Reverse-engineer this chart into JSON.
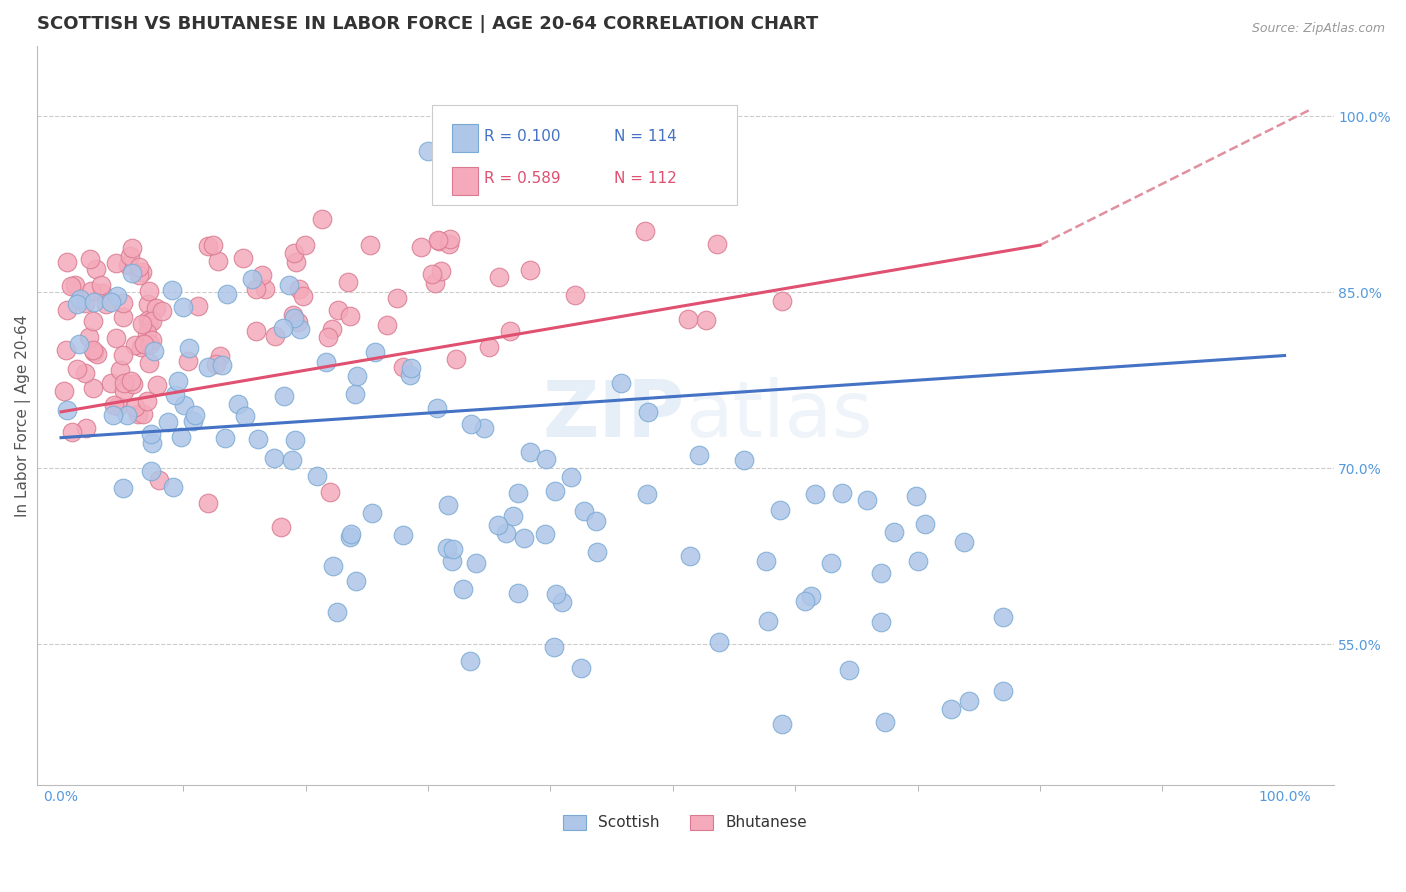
{
  "title": "SCOTTISH VS BHUTANESE IN LABOR FORCE | AGE 20-64 CORRELATION CHART",
  "source": "Source: ZipAtlas.com",
  "ylabel": "In Labor Force | Age 20-64",
  "y_ticks": [
    0.55,
    0.7,
    0.85,
    1.0
  ],
  "y_tick_labels": [
    "55.0%",
    "70.0%",
    "85.0%",
    "100.0%"
  ],
  "ylim": [
    0.43,
    1.06
  ],
  "xlim": [
    -0.02,
    1.04
  ],
  "scottish_color": "#AEC6E8",
  "scottish_edge": "#7aaad4",
  "bhutanese_color": "#F4AABB",
  "bhutanese_edge": "#d97a90",
  "blue_line_color": "#4472C4",
  "pink_line_color": "#E05070",
  "dash_line_color": "#E090A0",
  "blue_R": 0.1,
  "blue_N": 114,
  "pink_R": 0.589,
  "pink_N": 112,
  "blue_line_x": [
    0.0,
    1.0
  ],
  "blue_line_y": [
    0.726,
    0.796
  ],
  "pink_line_x": [
    0.0,
    0.8
  ],
  "pink_line_y": [
    0.748,
    0.89
  ],
  "dash_line_x": [
    0.8,
    1.02
  ],
  "dash_line_y": [
    0.89,
    1.005
  ],
  "background_color": "#FFFFFF",
  "grid_color": "#CCCCCC",
  "title_fontsize": 13,
  "axis_label_fontsize": 11,
  "tick_fontsize": 10,
  "watermark": "ZIPatlas",
  "marker_size": 180
}
